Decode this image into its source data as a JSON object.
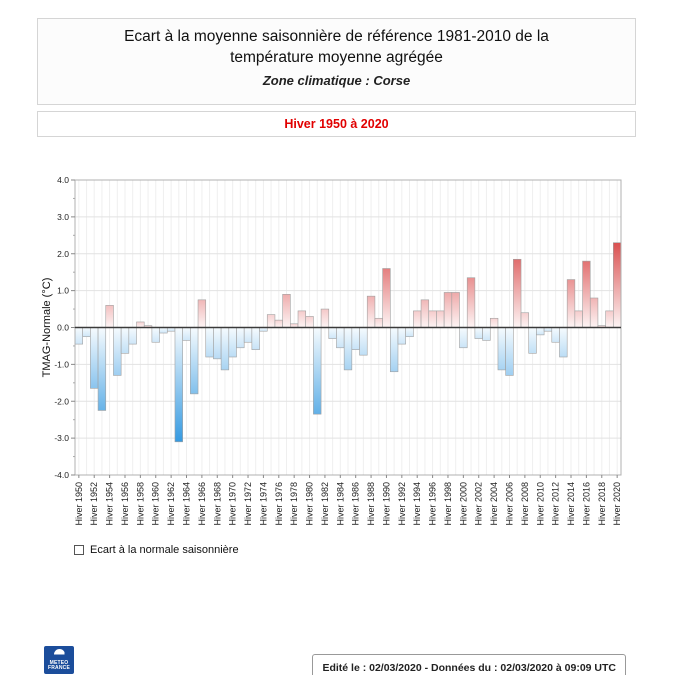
{
  "header": {
    "title_line1": "Ecart à la moyenne saisonnière  de référence 1981-2010  de la",
    "title_line2": "température moyenne  agrégée",
    "subtitle": "Zone climatique : Corse",
    "period": "Hiver 1950 à 2020"
  },
  "legend": {
    "label": "Ecart à la normale saisonnière"
  },
  "footer": {
    "edited": "Edité le : 02/03/2020 - Données du : 02/03/2020 à 09:09 UTC"
  },
  "logo": {
    "line1": "METEO",
    "line2": "FRANCE"
  },
  "chart_data": {
    "type": "bar",
    "title": "Ecart à la moyenne saisonnière de référence 1981-2010 de la température moyenne agrégée",
    "subtitle": "Zone climatique : Corse",
    "period": "Hiver 1950 à 2020",
    "xlabel": "",
    "ylabel": "TMAG-Normale (°C)",
    "ylim": [
      -4.0,
      4.0
    ],
    "y_ticks": [
      4.0,
      3.0,
      2.0,
      1.0,
      0.0,
      -1.0,
      -2.0,
      -3.0,
      -4.0
    ],
    "x_tick_prefix": "Hiver ",
    "x_tick_step": 2,
    "grid": true,
    "legend_position": "bottom-left",
    "colors": {
      "positive_strong": "#d94a4a",
      "positive_pale": "#fbe9e9",
      "negative_strong": "#2f97e0",
      "negative_pale": "#eaf4fc",
      "bar_stroke": "#a0a0a0",
      "zero_line": "#3a3a3a",
      "period_text": "#e10000",
      "logo_blue": "#1b4d9b"
    },
    "series": [
      {
        "name": "Ecart à la normale saisonnière",
        "points": [
          [
            1950,
            -0.45
          ],
          [
            1951,
            -0.25
          ],
          [
            1952,
            -1.65
          ],
          [
            1953,
            -2.25
          ],
          [
            1954,
            0.6
          ],
          [
            1955,
            -1.3
          ],
          [
            1956,
            -0.7
          ],
          [
            1957,
            -0.45
          ],
          [
            1958,
            0.15
          ],
          [
            1959,
            0.05
          ],
          [
            1960,
            -0.4
          ],
          [
            1961,
            -0.15
          ],
          [
            1962,
            -0.1
          ],
          [
            1963,
            -3.1
          ],
          [
            1964,
            -0.35
          ],
          [
            1965,
            -1.8
          ],
          [
            1966,
            0.75
          ],
          [
            1967,
            -0.8
          ],
          [
            1968,
            -0.85
          ],
          [
            1969,
            -1.15
          ],
          [
            1970,
            -0.8
          ],
          [
            1971,
            -0.55
          ],
          [
            1972,
            -0.4
          ],
          [
            1973,
            -0.6
          ],
          [
            1974,
            -0.1
          ],
          [
            1975,
            0.35
          ],
          [
            1976,
            0.2
          ],
          [
            1977,
            0.9
          ],
          [
            1978,
            0.1
          ],
          [
            1979,
            0.45
          ],
          [
            1980,
            0.3
          ],
          [
            1981,
            -2.35
          ],
          [
            1982,
            0.5
          ],
          [
            1983,
            -0.3
          ],
          [
            1984,
            -0.55
          ],
          [
            1985,
            -1.15
          ],
          [
            1986,
            -0.6
          ],
          [
            1987,
            -0.75
          ],
          [
            1988,
            0.85
          ],
          [
            1989,
            0.25
          ],
          [
            1990,
            1.6
          ],
          [
            1991,
            -1.2
          ],
          [
            1992,
            -0.45
          ],
          [
            1993,
            -0.25
          ],
          [
            1994,
            0.45
          ],
          [
            1995,
            0.75
          ],
          [
            1996,
            0.45
          ],
          [
            1997,
            0.45
          ],
          [
            1998,
            0.95
          ],
          [
            1999,
            0.95
          ],
          [
            2000,
            -0.55
          ],
          [
            2001,
            1.35
          ],
          [
            2002,
            -0.3
          ],
          [
            2003,
            -0.35
          ],
          [
            2004,
            0.25
          ],
          [
            2005,
            -1.15
          ],
          [
            2006,
            -1.3
          ],
          [
            2007,
            1.85
          ],
          [
            2008,
            0.4
          ],
          [
            2009,
            -0.7
          ],
          [
            2010,
            -0.2
          ],
          [
            2011,
            -0.1
          ],
          [
            2012,
            -0.4
          ],
          [
            2013,
            -0.8
          ],
          [
            2014,
            1.3
          ],
          [
            2015,
            0.45
          ],
          [
            2016,
            1.8
          ],
          [
            2017,
            0.8
          ],
          [
            2018,
            0.05
          ],
          [
            2019,
            0.45
          ],
          [
            2020,
            2.3
          ]
        ]
      }
    ]
  }
}
